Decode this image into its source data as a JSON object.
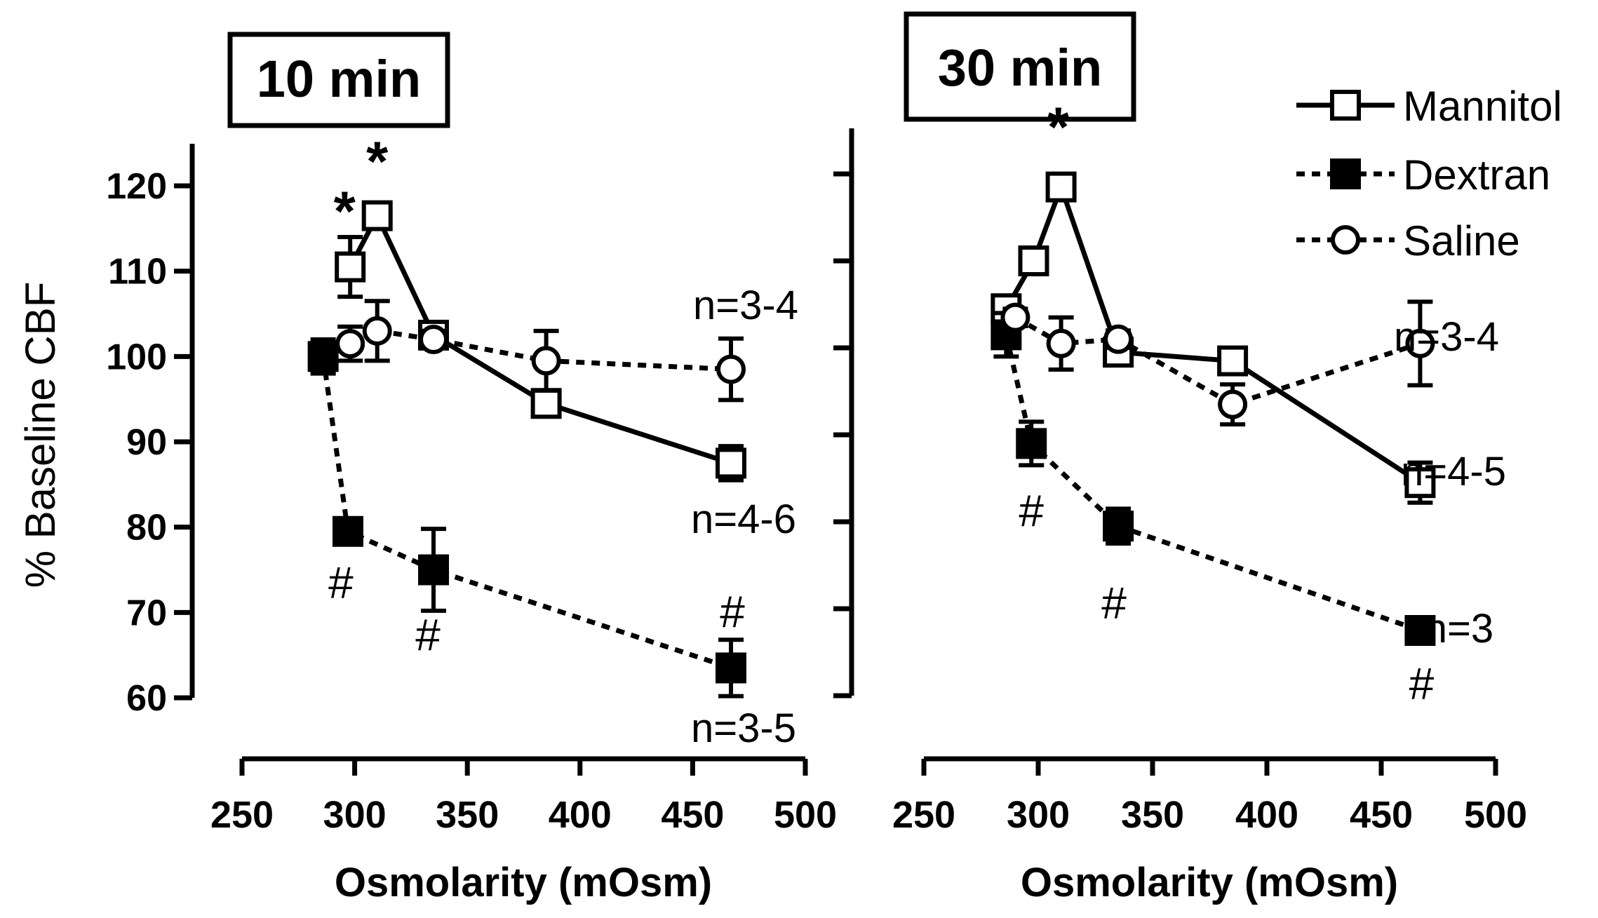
{
  "chart_data": [
    {
      "type": "line",
      "title": "10 min",
      "xlabel": "Osmolarity (mOsm)",
      "ylabel": "% Baseline CBF",
      "xlim": [
        250,
        500
      ],
      "ylim": [
        60,
        120
      ],
      "xticks": [
        "250",
        "300",
        "350",
        "400",
        "450",
        "500"
      ],
      "yticks": [
        "60",
        "70",
        "80",
        "90",
        "100",
        "110",
        "120"
      ],
      "series": [
        {
          "name": "Mannitol",
          "style": "solid",
          "marker": "open-square",
          "points": [
            {
              "x": 298,
              "y": 110.5,
              "err": 3.5
            },
            {
              "x": 310,
              "y": 116.5,
              "err": 1
            },
            {
              "x": 335,
              "y": 102.5,
              "err": 1.5
            },
            {
              "x": 385,
              "y": 94.5,
              "err": 1
            },
            {
              "x": 467,
              "y": 87.5,
              "err": 2
            }
          ]
        },
        {
          "name": "Dextran",
          "style": "dashed",
          "marker": "filled-square",
          "points": [
            {
              "x": 286,
              "y": 100,
              "err": 2
            },
            {
              "x": 297,
              "y": 79.5,
              "err": 1.5
            },
            {
              "x": 335,
              "y": 75,
              "err": 4.8
            },
            {
              "x": 467,
              "y": 63.5,
              "err": 3.3
            }
          ]
        },
        {
          "name": "Saline",
          "style": "dashed",
          "marker": "open-circle",
          "points": [
            {
              "x": 298,
              "y": 101.5,
              "err": 2
            },
            {
              "x": 310,
              "y": 103,
              "err": 3.5
            },
            {
              "x": 335,
              "y": 102,
              "err": 1
            },
            {
              "x": 385,
              "y": 99.5,
              "err": 3.5
            },
            {
              "x": 467,
              "y": 98.5,
              "err": 3.6
            }
          ]
        }
      ],
      "annotations": [
        {
          "text": "*",
          "series": "Mannitol",
          "x": 298,
          "position": "above"
        },
        {
          "text": "*",
          "series": "Mannitol",
          "x": 310,
          "position": "above"
        },
        {
          "text": "#",
          "series": "Dextran",
          "x": 297,
          "position": "below"
        },
        {
          "text": "#",
          "series": "Dextran",
          "x": 335,
          "position": "below"
        },
        {
          "text": "#",
          "series": "Dextran",
          "x": 467,
          "position": "above"
        },
        {
          "text": "n=3-4",
          "series": "Saline",
          "position": "above-right"
        },
        {
          "text": "n=4-6",
          "series": "Mannitol",
          "position": "below-right"
        },
        {
          "text": "n=3-5",
          "series": "Dextran",
          "position": "below-right"
        }
      ]
    },
    {
      "type": "line",
      "title": "30 min",
      "xlabel": "Osmolarity (mOsm)",
      "ylabel": "",
      "xlim": [
        250,
        500
      ],
      "ylim": [
        60,
        120
      ],
      "xticks": [
        "250",
        "300",
        "350",
        "400",
        "450",
        "500"
      ],
      "yticks": [],
      "series": [
        {
          "name": "Mannitol",
          "style": "solid",
          "marker": "open-square",
          "points": [
            {
              "x": 286,
              "y": 104.5,
              "err": 1
            },
            {
              "x": 298,
              "y": 110,
              "err": 1.5
            },
            {
              "x": 310,
              "y": 118.5,
              "err": 1
            },
            {
              "x": 335,
              "y": 99.5,
              "err": 1
            },
            {
              "x": 385,
              "y": 98.5,
              "err": 1
            },
            {
              "x": 467,
              "y": 84.5,
              "err": 2.3
            }
          ]
        },
        {
          "name": "Dextran",
          "style": "dashed",
          "marker": "filled-square",
          "points": [
            {
              "x": 286,
              "y": 101.5,
              "err": 2.5
            },
            {
              "x": 297,
              "y": 89,
              "err": 2.5
            },
            {
              "x": 335,
              "y": 79.5,
              "err": 2
            },
            {
              "x": 467,
              "y": 67.5,
              "err": 1
            }
          ]
        },
        {
          "name": "Saline",
          "style": "dashed",
          "marker": "open-circle",
          "points": [
            {
              "x": 290,
              "y": 103.5,
              "err": 1
            },
            {
              "x": 310,
              "y": 100.5,
              "err": 3
            },
            {
              "x": 335,
              "y": 101,
              "err": 1
            },
            {
              "x": 385,
              "y": 93.5,
              "err": 2.3
            },
            {
              "x": 467,
              "y": 100.5,
              "err": 4.8
            }
          ]
        }
      ],
      "annotations": [
        {
          "text": "*",
          "series": "Mannitol",
          "x": 310,
          "position": "above"
        },
        {
          "text": "#",
          "series": "Dextran",
          "x": 297,
          "position": "below"
        },
        {
          "text": "#",
          "series": "Dextran",
          "x": 335,
          "position": "below"
        },
        {
          "text": "#",
          "series": "Dextran",
          "x": 467,
          "position": "below"
        },
        {
          "text": "n=3-4",
          "series": "Saline",
          "position": "right"
        },
        {
          "text": "n=4-5",
          "series": "Mannitol",
          "position": "right"
        },
        {
          "text": "n=3",
          "series": "Dextran",
          "position": "right"
        }
      ],
      "legend": {
        "position": "top-right",
        "entries": [
          "Mannitol",
          "Dextran",
          "Saline"
        ]
      }
    }
  ]
}
